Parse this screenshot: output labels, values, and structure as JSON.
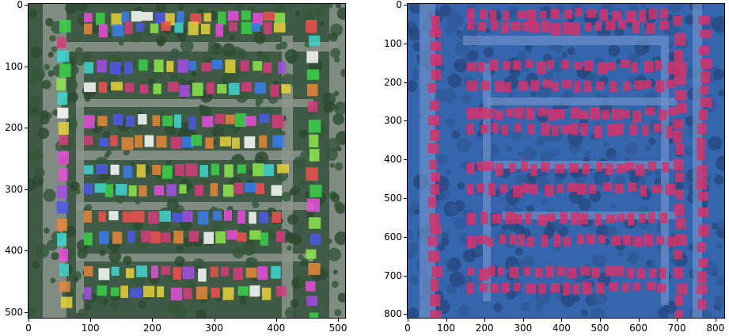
{
  "figure": {
    "left_panel": {
      "description_colors": [
        "#2e6b3e",
        "#7a8a7e",
        "#4b5e52"
      ],
      "x_ticks": [
        "0",
        "100",
        "200",
        "300",
        "400",
        "500"
      ],
      "y_ticks": [
        "0",
        "100",
        "200",
        "300",
        "400",
        "500"
      ]
    },
    "right_panel": {
      "description_colors": [
        "#2f5fa5",
        "#5b84c4",
        "#d4336b"
      ],
      "x_ticks": [
        "0",
        "100",
        "200",
        "300",
        "400",
        "500",
        "600",
        "700",
        "800"
      ],
      "y_ticks": [
        "0",
        "100",
        "200",
        "300",
        "400",
        "500",
        "600",
        "700",
        "800"
      ]
    }
  }
}
